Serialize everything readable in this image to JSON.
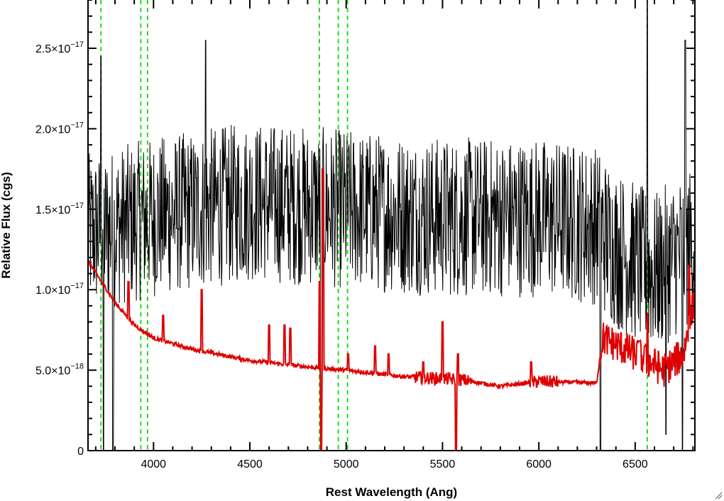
{
  "chart_data": {
    "type": "line",
    "xlabel": "Rest Wavelength (Ang)",
    "ylabel": "Relative Flux (cgs)",
    "xlim": [
      3660,
      6810
    ],
    "ylim": [
      0,
      2.8e-17
    ],
    "x_ticks": [
      {
        "value": 4000,
        "label": "4000"
      },
      {
        "value": 4500,
        "label": "4500"
      },
      {
        "value": 5000,
        "label": "5000"
      },
      {
        "value": 5500,
        "label": "5500"
      },
      {
        "value": 6000,
        "label": "6000"
      },
      {
        "value": 6500,
        "label": "6500"
      }
    ],
    "y_ticks": [
      {
        "value": 0,
        "mantissa": "0",
        "exponent": ""
      },
      {
        "value": 5e-18,
        "mantissa": "5.0×10",
        "exponent": "−18"
      },
      {
        "value": 1e-17,
        "mantissa": "1.0×10",
        "exponent": "−17"
      },
      {
        "value": 1.5e-17,
        "mantissa": "1.5×10",
        "exponent": "−17"
      },
      {
        "value": 2e-17,
        "mantissa": "2.0×10",
        "exponent": "−17"
      },
      {
        "value": 2.5e-17,
        "mantissa": "2.5×10",
        "exponent": "−17"
      }
    ],
    "vertical_lines": [
      3727,
      3934,
      3969,
      4861,
      4959,
      5007,
      6563
    ],
    "series": [
      {
        "color": "#000000",
        "style": "noisy",
        "baseline": [
          [
            3660,
            1.35e-17
          ],
          [
            4000,
            1.45e-17
          ],
          [
            4500,
            1.55e-17
          ],
          [
            5000,
            1.5e-17
          ],
          [
            5500,
            1.45e-17
          ],
          [
            6000,
            1.45e-17
          ],
          [
            6300,
            1.4e-17
          ],
          [
            6400,
            1.25e-17
          ],
          [
            6600,
            1.1e-17
          ],
          [
            6810,
            1.3e-17
          ]
        ],
        "noise_amplitude": 5e-18,
        "spikes": [
          [
            3727,
            2.45e-17
          ],
          [
            6563,
            2.8e-17
          ],
          [
            6760,
            2.55e-17
          ],
          [
            4270,
            2.55e-17
          ]
        ],
        "dips": [
          [
            3740,
            0
          ],
          [
            3790,
            0
          ],
          [
            4870,
            0
          ],
          [
            6320,
            0
          ],
          [
            6660,
            1e-18
          ],
          [
            6745,
            0
          ]
        ]
      },
      {
        "color": "#dd0000",
        "style": "model",
        "baseline": [
          [
            3660,
            1.18e-17
          ],
          [
            3800,
            9.2e-18
          ],
          [
            3900,
            7.8e-18
          ],
          [
            4000,
            7e-18
          ],
          [
            4200,
            6.3e-18
          ],
          [
            4500,
            5.6e-18
          ],
          [
            4800,
            5.2e-18
          ],
          [
            5000,
            5e-18
          ],
          [
            5300,
            4.6e-18
          ],
          [
            5600,
            4.4e-18
          ],
          [
            5800,
            4e-18
          ],
          [
            6000,
            4.3e-18
          ],
          [
            6300,
            4.2e-18
          ],
          [
            6330,
            7e-18
          ],
          [
            6500,
            6e-18
          ],
          [
            6650,
            5e-18
          ],
          [
            6750,
            6e-18
          ],
          [
            6810,
            9.5e-18
          ]
        ],
        "lines": [
          [
            3870,
            1.05e-17
          ],
          [
            4050,
            8.4e-18
          ],
          [
            4250,
            1e-17
          ],
          [
            4600,
            7.8e-18
          ],
          [
            4680,
            7.8e-18
          ],
          [
            4710,
            7.6e-18
          ],
          [
            4861,
            1.05e-17
          ],
          [
            4880,
            1.75e-17
          ],
          [
            5010,
            6e-18
          ],
          [
            5150,
            6.5e-18
          ],
          [
            5220,
            6e-18
          ],
          [
            5400,
            5.5e-18
          ],
          [
            5500,
            8e-18
          ],
          [
            5580,
            6e-18
          ],
          [
            5960,
            5.5e-18
          ],
          [
            6520,
            6.8e-18
          ],
          [
            6550,
            6.5e-18
          ],
          [
            6563,
            8.5e-18
          ],
          [
            6780,
            1.15e-17
          ]
        ],
        "drops": [
          [
            5570,
            0
          ],
          [
            4870,
            0
          ]
        ]
      }
    ]
  }
}
